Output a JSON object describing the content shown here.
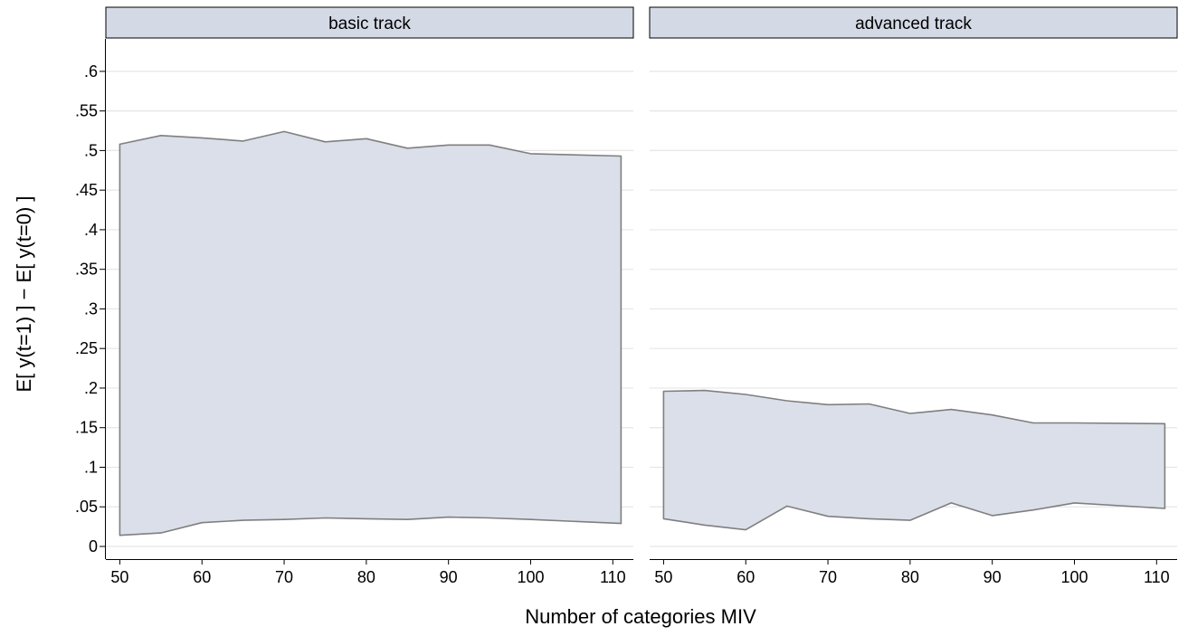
{
  "chart_data": {
    "type": "area",
    "ylabel": "E[ y(t=1) ] − E[ y(t=0) ]",
    "xlabel": "Number of categories MIV",
    "y_ticks": [
      {
        "value": 0,
        "label": "0"
      },
      {
        "value": 0.05,
        "label": ".05"
      },
      {
        "value": 0.1,
        "label": ".1"
      },
      {
        "value": 0.15,
        "label": ".15"
      },
      {
        "value": 0.2,
        "label": ".2"
      },
      {
        "value": 0.25,
        "label": ".25"
      },
      {
        "value": 0.3,
        "label": ".3"
      },
      {
        "value": 0.35,
        "label": ".35"
      },
      {
        "value": 0.4,
        "label": ".4"
      },
      {
        "value": 0.45,
        "label": ".45"
      },
      {
        "value": 0.5,
        "label": ".5"
      },
      {
        "value": 0.55,
        "label": ".55"
      },
      {
        "value": 0.6,
        "label": ".6"
      }
    ],
    "x_ticks": [
      {
        "value": 50,
        "label": "50"
      },
      {
        "value": 60,
        "label": "60"
      },
      {
        "value": 70,
        "label": "70"
      },
      {
        "value": 80,
        "label": "80"
      },
      {
        "value": 90,
        "label": "90"
      },
      {
        "value": 100,
        "label": "100"
      },
      {
        "value": 110,
        "label": "110"
      }
    ],
    "xlim": [
      48.3,
      112.5
    ],
    "ylim": [
      -0.016,
      0.641
    ],
    "colors": {
      "fill": "#dbdfe9",
      "stroke": "#7f7f7f",
      "strip": "#d4d9e6",
      "grid": "#e6e6e6"
    },
    "panels": [
      {
        "title": "basic track",
        "x": [
          50,
          55,
          60,
          65,
          70,
          75,
          80,
          85,
          90,
          95,
          100,
          111
        ],
        "upper": [
          0.508,
          0.519,
          0.516,
          0.512,
          0.524,
          0.511,
          0.515,
          0.503,
          0.507,
          0.507,
          0.496,
          0.493
        ],
        "lower": [
          0.014,
          0.017,
          0.03,
          0.033,
          0.034,
          0.036,
          0.035,
          0.034,
          0.037,
          0.036,
          0.034,
          0.029
        ]
      },
      {
        "title": "advanced track",
        "x": [
          50,
          55,
          60,
          65,
          70,
          75,
          80,
          85,
          90,
          95,
          100,
          111
        ],
        "upper": [
          0.196,
          0.197,
          0.192,
          0.184,
          0.179,
          0.18,
          0.168,
          0.173,
          0.166,
          0.156,
          0.156,
          0.155
        ],
        "lower": [
          0.035,
          0.027,
          0.021,
          0.051,
          0.038,
          0.035,
          0.033,
          0.055,
          0.039,
          0.046,
          0.055,
          0.048
        ]
      }
    ]
  }
}
